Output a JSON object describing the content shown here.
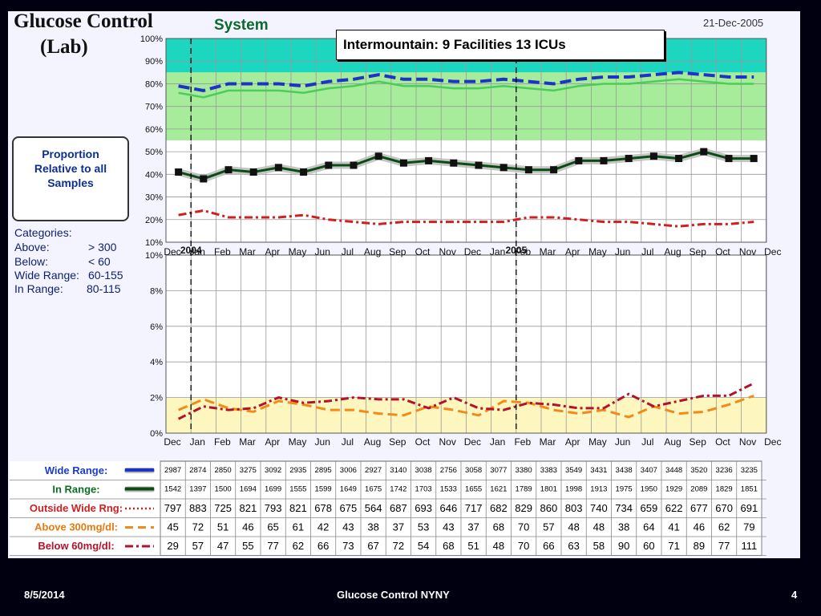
{
  "slide": {
    "title_line1": "Glucose Control",
    "title_line2": "(Lab)",
    "system": "System",
    "date": "21-Dec-2005",
    "callout": "Intermountain: 9 Facilities 13 ICUs",
    "proportion_box": [
      "Proportion",
      "Relative to all",
      "Samples"
    ],
    "categories": {
      "heading": "Categories:",
      "rows": [
        {
          "name": "Above:",
          "value": "> 300"
        },
        {
          "name": "Below:",
          "value": "<  60"
        },
        {
          "name": "Wide Range:",
          "value": "60-155"
        },
        {
          "name": "In Range:",
          "value": "80-115"
        }
      ]
    },
    "footer": {
      "date": "8/5/2014",
      "center": "Glucose Control NYNY",
      "page": "4"
    }
  },
  "colors": {
    "wide": "#1c33c7",
    "in_range": "#1f8a2e",
    "outside": "#d11f1f",
    "above": "#f28a1a",
    "below": "#b3122a"
  },
  "chart_data": [
    {
      "type": "line",
      "months": [
        "Dec",
        "Jan",
        "Feb",
        "Mar",
        "Apr",
        "May",
        "Jun",
        "Jul",
        "Aug",
        "Sep",
        "Oct",
        "Nov",
        "Dec",
        "Jan",
        "Feb",
        "Mar",
        "Apr",
        "May",
        "Jun",
        "Jul",
        "Aug",
        "Sep",
        "Oct",
        "Nov",
        "Dec"
      ],
      "year_labels": [
        {
          "index": 0,
          "label": "2004"
        },
        {
          "index": 13,
          "label": "2005"
        }
      ],
      "ylim": [
        10,
        100
      ],
      "yticks": [
        "10%",
        "20%",
        "30%",
        "40%",
        "50%",
        "60%",
        "70%",
        "80%",
        "90%",
        "100%"
      ],
      "series": [
        {
          "name": "Wide Range",
          "values": [
            79,
            77,
            80,
            80,
            80,
            79,
            81,
            82,
            84,
            82,
            82,
            81,
            81,
            82,
            81,
            80,
            82,
            83,
            83,
            84,
            85,
            84,
            83,
            83
          ]
        },
        {
          "name": "In Range",
          "values": [
            41,
            38,
            42,
            41,
            43,
            41,
            44,
            44,
            48,
            45,
            46,
            45,
            44,
            43,
            42,
            42,
            46,
            46,
            47,
            48,
            47,
            50,
            47,
            47
          ]
        },
        {
          "name": "Outside Wide Rng",
          "values": [
            22,
            24,
            21,
            21,
            21,
            22,
            20,
            19,
            18,
            19,
            19,
            19,
            19,
            19,
            21,
            21,
            20,
            19,
            19,
            18,
            17,
            18,
            18,
            19
          ]
        }
      ]
    },
    {
      "type": "line",
      "ylim": [
        0,
        10
      ],
      "yticks": [
        "0%",
        "2%",
        "4%",
        "6%",
        "8%",
        "10%"
      ],
      "series": [
        {
          "name": "Above 300mg/dl",
          "values": [
            1.3,
            1.9,
            1.4,
            1.2,
            1.8,
            1.6,
            1.3,
            1.3,
            1.1,
            1.0,
            1.5,
            1.3,
            1.0,
            1.8,
            1.7,
            1.3,
            1.1,
            1.3,
            0.9,
            1.5,
            1.1,
            1.2,
            1.6,
            2.1
          ]
        },
        {
          "name": "Below 60mg/dl",
          "values": [
            0.8,
            1.5,
            1.3,
            1.4,
            2.0,
            1.7,
            1.8,
            2.0,
            1.9,
            1.9,
            1.4,
            2.0,
            1.4,
            1.3,
            1.7,
            1.6,
            1.4,
            1.4,
            2.2,
            1.5,
            1.8,
            2.1,
            2.1,
            2.8
          ]
        }
      ]
    },
    {
      "type": "table",
      "rows": [
        {
          "label": "Wide Range:",
          "values": [
            "2987",
            "2874",
            "2850",
            "3275",
            "3092",
            "2935",
            "2895",
            "3006",
            "2927",
            "3140",
            "3038",
            "2756",
            "3058",
            "3077",
            "3380",
            "3383",
            "3549",
            "3431",
            "3438",
            "3407",
            "3448",
            "3520",
            "3236",
            "3235"
          ]
        },
        {
          "label": "In Range:",
          "values": [
            "1542",
            "1397",
            "1500",
            "1694",
            "1699",
            "1555",
            "1599",
            "1649",
            "1675",
            "1742",
            "1703",
            "1533",
            "1655",
            "1621",
            "1789",
            "1801",
            "1998",
            "1913",
            "1975",
            "1950",
            "1929",
            "2089",
            "1829",
            "1851"
          ]
        },
        {
          "label": "Outside Wide Rng:",
          "values": [
            "797",
            "883",
            "725",
            "821",
            "793",
            "821",
            "678",
            "675",
            "564",
            "687",
            "693",
            "646",
            "717",
            "682",
            "829",
            "860",
            "803",
            "740",
            "734",
            "659",
            "622",
            "677",
            "670",
            "691"
          ]
        },
        {
          "label": "Above 300mg/dl:",
          "values": [
            "45",
            "72",
            "51",
            "46",
            "65",
            "61",
            "42",
            "43",
            "38",
            "37",
            "53",
            "43",
            "37",
            "68",
            "70",
            "57",
            "48",
            "48",
            "38",
            "64",
            "41",
            "46",
            "62",
            "79"
          ]
        },
        {
          "label": "Below 60mg/dl:",
          "values": [
            "29",
            "57",
            "47",
            "55",
            "77",
            "62",
            "66",
            "73",
            "67",
            "72",
            "54",
            "68",
            "51",
            "48",
            "70",
            "66",
            "63",
            "58",
            "90",
            "60",
            "71",
            "89",
            "77",
            "111"
          ]
        }
      ]
    }
  ]
}
